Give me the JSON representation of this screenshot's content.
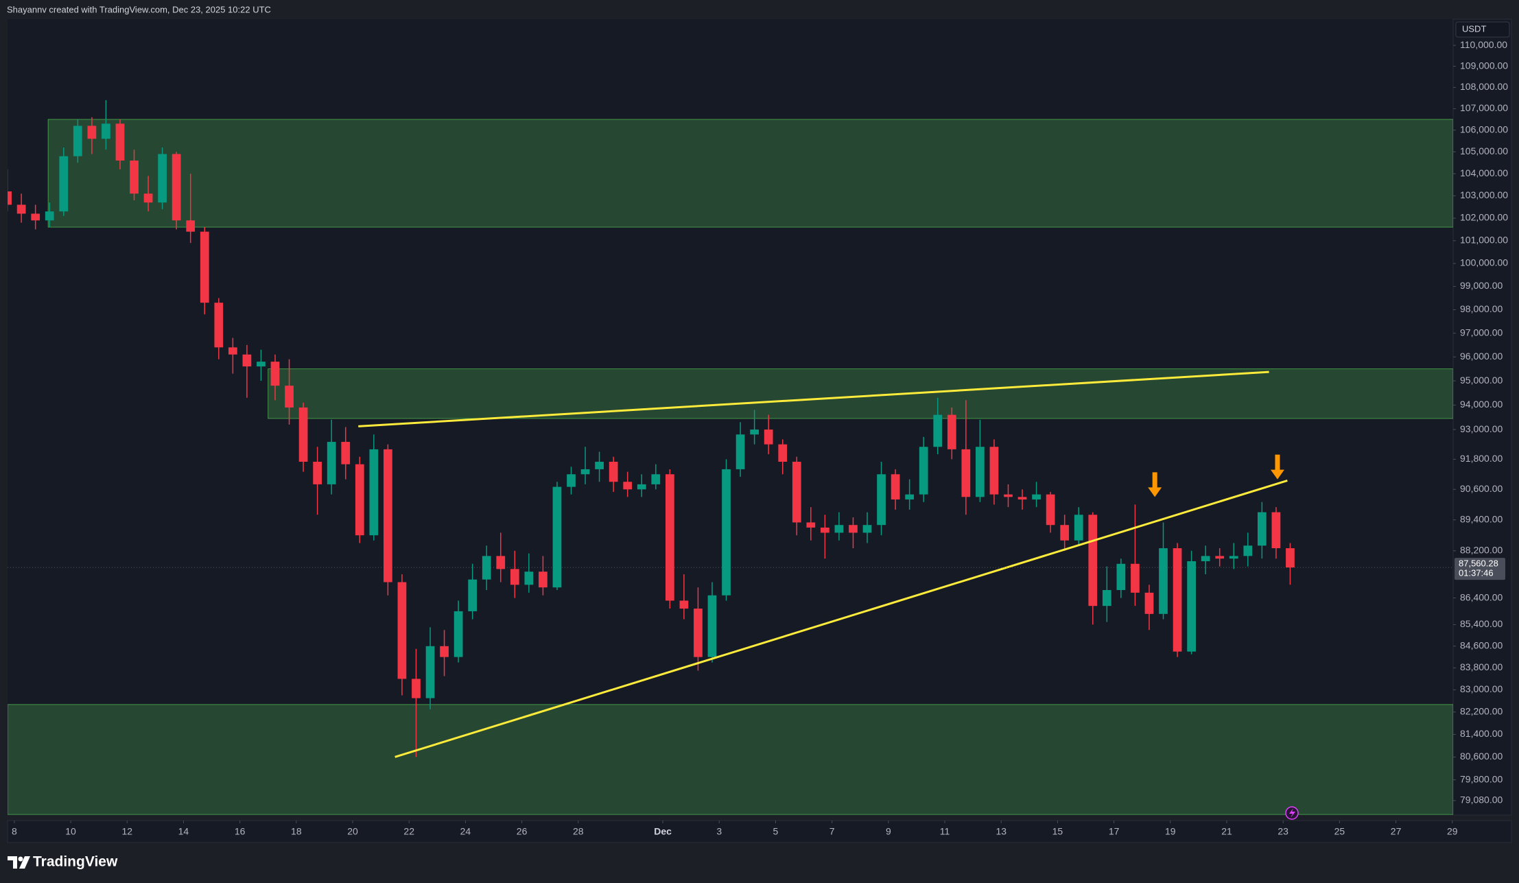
{
  "header": {
    "text": "Shayannv created with TradingView.com, Dec 23, 2025 10:22 UTC"
  },
  "footer": {
    "brand": "TradingView"
  },
  "chart_data": {
    "type": "candlestick",
    "currency": "USDT",
    "log_scale": true,
    "grid": false,
    "up_color": "#089981",
    "down_color": "#f23645",
    "xlim": [
      7.76,
      59.03
    ],
    "ylim": [
      78580,
      111265
    ],
    "xticks": [
      8,
      10,
      12,
      14,
      16,
      18,
      20,
      22,
      24,
      26,
      28,
      {
        "value": 31,
        "label": "Dec"
      },
      {
        "value": 33,
        "label": "3"
      },
      {
        "value": 35,
        "label": "5"
      },
      {
        "value": 37,
        "label": "7"
      },
      {
        "value": 39,
        "label": "9"
      },
      {
        "value": 41,
        "label": "11"
      },
      {
        "value": 43,
        "label": "13"
      },
      {
        "value": 45,
        "label": "15"
      },
      {
        "value": 47,
        "label": "17"
      },
      {
        "value": 49,
        "label": "19"
      },
      {
        "value": 51,
        "label": "21"
      },
      {
        "value": 53,
        "label": "23"
      },
      {
        "value": 55,
        "label": "25"
      },
      {
        "value": 57,
        "label": "27"
      },
      {
        "value": 59,
        "label": "29"
      }
    ],
    "yticks": [
      {
        "value": 110000,
        "label": "110,000.00"
      },
      {
        "value": 109000,
        "label": "109,000.00"
      },
      {
        "value": 108000,
        "label": "108,000.00"
      },
      {
        "value": 107000,
        "label": "107,000.00"
      },
      {
        "value": 106000,
        "label": "106,000.00"
      },
      {
        "value": 105000,
        "label": "105,000.00"
      },
      {
        "value": 104000,
        "label": "104,000.00"
      },
      {
        "value": 103000,
        "label": "103,000.00"
      },
      {
        "value": 102000,
        "label": "102,000.00"
      },
      {
        "value": 101000,
        "label": "101,000.00"
      },
      {
        "value": 100000,
        "label": "100,000.00"
      },
      {
        "value": 99000,
        "label": "99,000.00"
      },
      {
        "value": 98000,
        "label": "98,000.00"
      },
      {
        "value": 97000,
        "label": "97,000.00"
      },
      {
        "value": 96000,
        "label": "96,000.00"
      },
      {
        "value": 95000,
        "label": "95,000.00"
      },
      {
        "value": 94000,
        "label": "94,000.00"
      },
      {
        "value": 93000,
        "label": "93,000.00"
      },
      {
        "value": 91800,
        "label": "91,800.00"
      },
      {
        "value": 90600,
        "label": "90,600.00"
      },
      {
        "value": 89400,
        "label": "89,400.00"
      },
      {
        "value": 88200,
        "label": "88,200.00"
      },
      {
        "value": 86400,
        "label": "86,400.00"
      },
      {
        "value": 85400,
        "label": "85,400.00"
      },
      {
        "value": 84600,
        "label": "84,600.00"
      },
      {
        "value": 83800,
        "label": "83,800.00"
      },
      {
        "value": 83000,
        "label": "83,000.00"
      },
      {
        "value": 82200,
        "label": "82,200.00"
      },
      {
        "value": 81400,
        "label": "81,400.00"
      },
      {
        "value": 80600,
        "label": "80,600.00"
      },
      {
        "value": 79800,
        "label": "79,800.00"
      },
      {
        "value": 79080,
        "label": "79,080.00"
      }
    ],
    "x": [
      7.75,
      8.25,
      8.75,
      9.25,
      9.75,
      10.25,
      10.75,
      11.25,
      11.75,
      12.25,
      12.75,
      13.25,
      13.75,
      14.25,
      14.75,
      15.25,
      15.75,
      16.25,
      16.75,
      17.25,
      17.75,
      18.25,
      18.75,
      19.25,
      19.75,
      20.25,
      20.75,
      21.25,
      21.75,
      22.25,
      22.75,
      23.25,
      23.75,
      24.25,
      24.75,
      25.25,
      25.75,
      26.25,
      26.75,
      27.25,
      27.75,
      28.25,
      28.75,
      29.25,
      29.75,
      30.25,
      30.75,
      31.25,
      31.75,
      32.25,
      32.75,
      33.25,
      33.75,
      34.25,
      34.75,
      35.25,
      35.75,
      36.25,
      36.75,
      37.25,
      37.75,
      38.25,
      38.75,
      39.25,
      39.75,
      40.25,
      40.75,
      41.25,
      41.75,
      42.25,
      42.75,
      43.25,
      43.75,
      44.25,
      44.75,
      45.25,
      45.75,
      46.25,
      46.75,
      47.25,
      47.75,
      48.25,
      48.75,
      49.25,
      49.75,
      50.25,
      50.75,
      51.25,
      51.75,
      52.25,
      52.75,
      53.25
    ],
    "open": [
      103200,
      102600,
      102200,
      101900,
      102300,
      104800,
      106200,
      105600,
      106300,
      104600,
      103100,
      102700,
      104900,
      101900,
      101400,
      98300,
      96400,
      96100,
      95600,
      95800,
      94800,
      93900,
      91700,
      90800,
      92500,
      91600,
      88800,
      92200,
      87000,
      83400,
      82700,
      84600,
      84200,
      85900,
      87100,
      88000,
      87500,
      86900,
      87400,
      86800,
      90700,
      91200,
      91400,
      91700,
      90900,
      90600,
      90800,
      91200,
      86300,
      86000,
      84200,
      86500,
      91400,
      92800,
      93000,
      92400,
      91700,
      89300,
      89100,
      88900,
      89200,
      88900,
      89200,
      91200,
      90200,
      90400,
      92300,
      93600,
      92200,
      90300,
      92300,
      90400,
      90300,
      90200,
      90400,
      89200,
      88600,
      89600,
      86100,
      86700,
      87700,
      86600,
      85800,
      88300,
      84400,
      87800,
      88000,
      87900,
      88000,
      88400,
      89700,
      88300
    ],
    "high": [
      104200,
      103100,
      102600,
      102700,
      105200,
      106500,
      106600,
      107400,
      106500,
      105100,
      103900,
      105200,
      105000,
      104000,
      101600,
      98500,
      96800,
      96500,
      96300,
      96100,
      95900,
      94100,
      92300,
      93400,
      93100,
      91900,
      92800,
      92400,
      87300,
      84500,
      85300,
      85200,
      86300,
      87700,
      88400,
      88900,
      88200,
      88100,
      88000,
      90900,
      91500,
      92300,
      92100,
      91900,
      91300,
      91200,
      91600,
      91400,
      87300,
      86800,
      87000,
      91800,
      93300,
      93800,
      93600,
      92600,
      91900,
      89900,
      89600,
      89700,
      89500,
      89700,
      91700,
      91400,
      91000,
      92700,
      94300,
      93900,
      94200,
      93400,
      92600,
      90800,
      90600,
      90900,
      90500,
      89600,
      89900,
      89700,
      87600,
      87900,
      90000,
      86900,
      89300,
      88500,
      88200,
      88400,
      88300,
      88500,
      88900,
      90100,
      89900,
      88500
    ],
    "low": [
      102300,
      101800,
      101500,
      101600,
      102100,
      104500,
      104900,
      105100,
      104200,
      102800,
      102300,
      102400,
      101500,
      100900,
      97800,
      95900,
      95300,
      94300,
      95000,
      94200,
      93200,
      91300,
      89600,
      90400,
      91000,
      88500,
      88600,
      86500,
      82800,
      80600,
      82300,
      83500,
      84000,
      85600,
      86700,
      87000,
      86400,
      86600,
      86500,
      86700,
      90400,
      90800,
      90900,
      90500,
      90300,
      90300,
      90600,
      86000,
      85600,
      83700,
      84000,
      86300,
      91100,
      92400,
      92000,
      91200,
      88800,
      88600,
      87900,
      88600,
      88300,
      88500,
      88800,
      89800,
      89800,
      90100,
      92000,
      91800,
      89600,
      90100,
      90000,
      89900,
      89800,
      89900,
      88900,
      88200,
      88400,
      85400,
      85500,
      86400,
      86100,
      85200,
      85600,
      84200,
      84300,
      87300,
      87600,
      87500,
      87600,
      87900,
      87900,
      86900
    ],
    "close": [
      102600,
      102200,
      101900,
      102300,
      104800,
      106200,
      105600,
      106300,
      104600,
      103100,
      102700,
      104900,
      101900,
      101400,
      98300,
      96400,
      96100,
      95600,
      95800,
      94800,
      93900,
      91700,
      90800,
      92500,
      91600,
      88800,
      92200,
      87000,
      83400,
      82700,
      84600,
      84200,
      85900,
      87100,
      88000,
      87500,
      86900,
      87400,
      86800,
      90700,
      91200,
      91400,
      91700,
      90900,
      90600,
      90800,
      91200,
      86300,
      86000,
      84200,
      86500,
      91400,
      92800,
      93000,
      92400,
      91700,
      89300,
      89100,
      88900,
      89200,
      88900,
      89200,
      91200,
      90200,
      90400,
      92300,
      93600,
      92200,
      90300,
      92300,
      90400,
      90300,
      90200,
      90400,
      89200,
      88600,
      89600,
      86100,
      86700,
      87700,
      86600,
      85800,
      88300,
      84400,
      87800,
      88000,
      87900,
      88000,
      88400,
      89700,
      88300,
      87560.28
    ],
    "last_price": {
      "value": 87560.28,
      "label": "87,560.28"
    },
    "countdown": "01:37:46",
    "zones": [
      {
        "x": [
          9.2,
          59.03
        ],
        "y": [
          101600,
          106500
        ],
        "color": "#4caf50"
      },
      {
        "x": [
          17.0,
          59.03
        ],
        "y": [
          93450,
          95500
        ],
        "color": "#4caf50"
      },
      {
        "x": [
          7.76,
          59.03
        ],
        "y": [
          78600,
          82470
        ],
        "color": "#4caf50"
      }
    ],
    "trendlines": [
      {
        "x": [
          20.2,
          52.5
        ],
        "y": [
          93130,
          95370
        ],
        "color": "#ffeb3b"
      },
      {
        "x": [
          21.5,
          53.15
        ],
        "y": [
          80600,
          90950
        ],
        "color": "#ffeb3b"
      }
    ],
    "arrows": [
      {
        "x": 48.45,
        "y": 90300,
        "color": "#ff9800"
      },
      {
        "x": 52.8,
        "y": 91000,
        "color": "#ff9800"
      }
    ]
  }
}
